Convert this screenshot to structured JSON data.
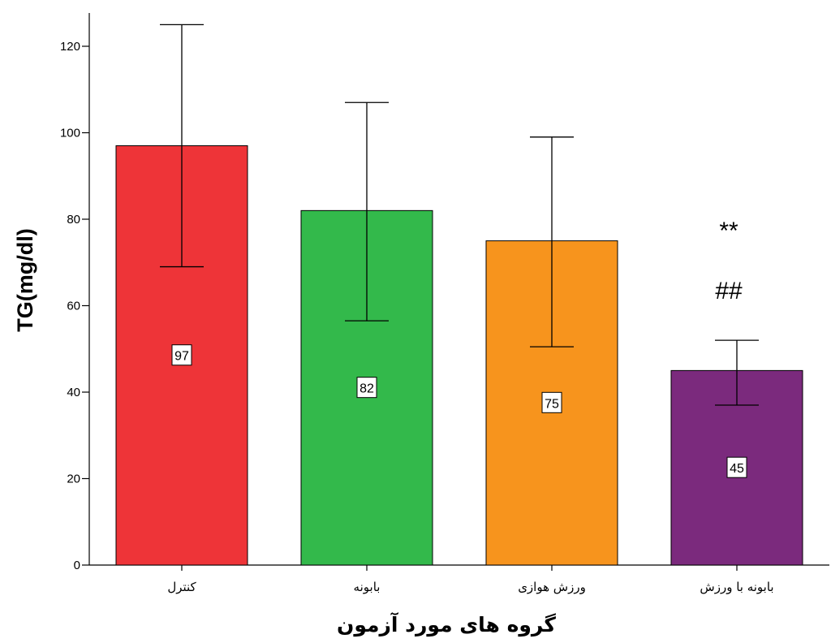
{
  "chart_data": {
    "type": "bar",
    "categories": [
      "کنترل",
      "بابونه",
      "ورزش هوازی",
      "بابونه با ورزش"
    ],
    "values": [
      97,
      82,
      75,
      45
    ],
    "error_high": [
      125,
      107,
      99,
      52
    ],
    "error_low": [
      69,
      56.5,
      50.5,
      37
    ],
    "data_labels": [
      "97",
      "82",
      "75",
      "45"
    ],
    "colors": [
      "#ee3438",
      "#33b94b",
      "#f7941d",
      "#7b2a7d"
    ],
    "ylabel": "TG(mg/dl)",
    "xlabel": "گروه های مورد آزمون",
    "ylim": [
      0,
      125
    ],
    "yticks": [
      0,
      20,
      40,
      60,
      80,
      100,
      120
    ],
    "annotations": [
      "**",
      "##"
    ],
    "grid": false
  }
}
